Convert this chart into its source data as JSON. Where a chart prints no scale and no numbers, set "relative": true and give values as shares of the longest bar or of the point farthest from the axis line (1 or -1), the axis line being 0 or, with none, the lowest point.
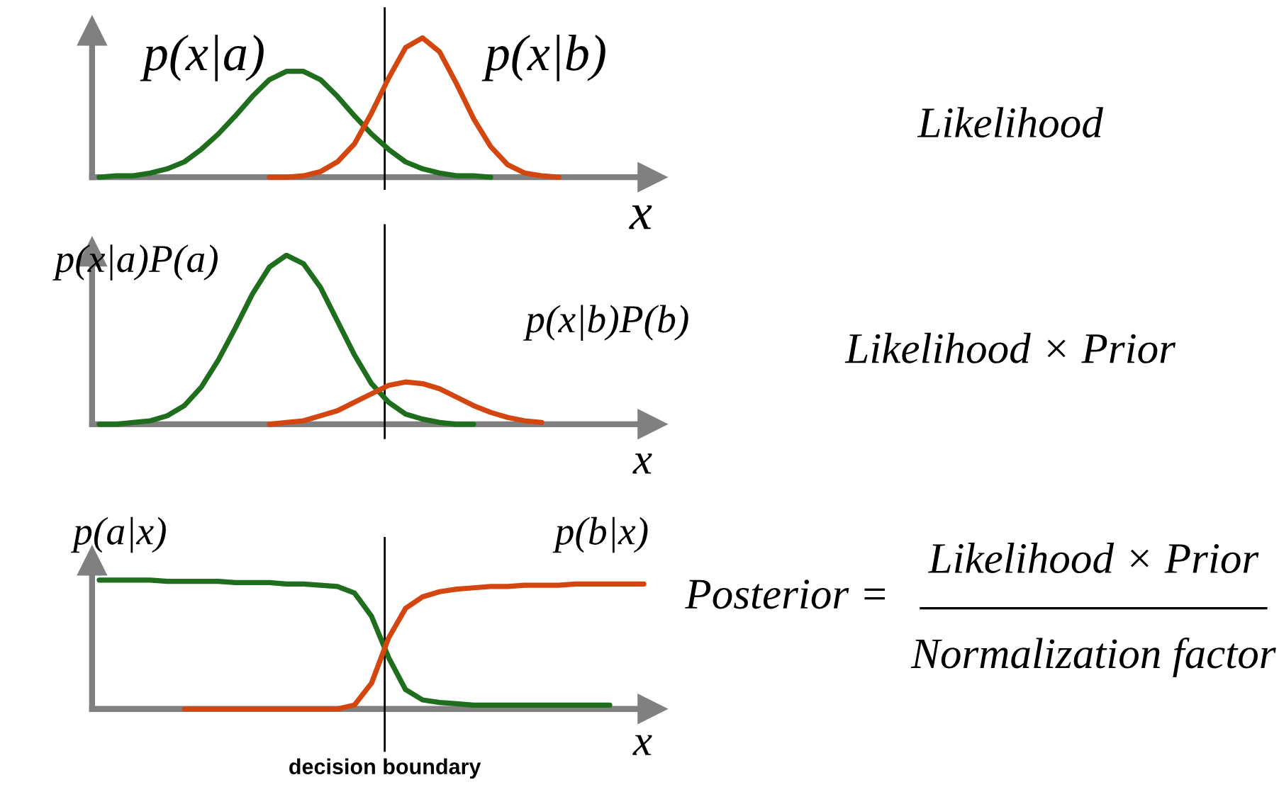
{
  "chart_data": [
    {
      "type": "line",
      "relative": true,
      "xlabel": "x",
      "legend": false,
      "grid": false,
      "categories": [
        null,
        null,
        null,
        null,
        null,
        null,
        null,
        null,
        null,
        null,
        null,
        null,
        null,
        null,
        null,
        null,
        null,
        null,
        null,
        null,
        null,
        null,
        null,
        null,
        null,
        null,
        null,
        null,
        null,
        null,
        null,
        null,
        null
      ],
      "series": [
        {
          "name": "p(x|a)",
          "color": "#1e6e1e",
          "values": [
            0.0,
            0.01,
            0.01,
            0.03,
            0.06,
            0.11,
            0.2,
            0.31,
            0.44,
            0.58,
            0.7,
            0.76,
            0.76,
            0.7,
            0.58,
            0.44,
            0.31,
            0.2,
            0.11,
            0.06,
            0.03,
            0.01,
            0.01,
            0.0,
            null,
            null,
            null,
            null,
            null,
            null,
            null,
            null,
            null
          ]
        },
        {
          "name": "p(x|b)",
          "color": "#d4460f",
          "values": [
            null,
            null,
            null,
            null,
            null,
            null,
            null,
            null,
            null,
            null,
            0.0,
            0.0,
            0.01,
            0.04,
            0.11,
            0.24,
            0.46,
            0.71,
            0.93,
            1.0,
            0.9,
            0.67,
            0.42,
            0.22,
            0.09,
            0.03,
            0.01,
            0.0,
            null,
            null,
            null,
            null,
            null
          ]
        }
      ],
      "annotations": [
        "Likelihood"
      ]
    },
    {
      "type": "line",
      "relative": true,
      "xlabel": "x",
      "legend": false,
      "grid": false,
      "categories": [
        null,
        null,
        null,
        null,
        null,
        null,
        null,
        null,
        null,
        null,
        null,
        null,
        null,
        null,
        null,
        null,
        null,
        null,
        null,
        null,
        null,
        null,
        null,
        null,
        null,
        null,
        null,
        null,
        null,
        null,
        null,
        null,
        null
      ],
      "series": [
        {
          "name": "p(x|a)P(a)",
          "color": "#1e6e1e",
          "values": [
            0.0,
            0.0,
            0.01,
            0.02,
            0.05,
            0.11,
            0.22,
            0.38,
            0.57,
            0.77,
            0.93,
            1.0,
            0.95,
            0.81,
            0.61,
            0.41,
            0.24,
            0.13,
            0.06,
            0.03,
            0.01,
            0.0,
            0.0,
            null,
            null,
            null,
            null,
            null,
            null,
            null,
            null,
            null,
            null
          ]
        },
        {
          "name": "p(x|b)P(b)",
          "color": "#d4460f",
          "values": [
            null,
            null,
            null,
            null,
            null,
            null,
            null,
            null,
            null,
            null,
            0.0,
            0.01,
            0.02,
            0.05,
            0.08,
            0.13,
            0.18,
            0.23,
            0.25,
            0.24,
            0.21,
            0.16,
            0.11,
            0.07,
            0.04,
            0.02,
            0.01,
            null,
            null,
            null,
            null,
            null,
            null
          ]
        }
      ],
      "annotations": [
        "Likelihood × Prior"
      ]
    },
    {
      "type": "line",
      "relative": true,
      "xlabel": "x",
      "legend": false,
      "grid": false,
      "categories": [
        null,
        null,
        null,
        null,
        null,
        null,
        null,
        null,
        null,
        null,
        null,
        null,
        null,
        null,
        null,
        null,
        null,
        null,
        null,
        null,
        null,
        null,
        null,
        null,
        null,
        null,
        null,
        null,
        null,
        null,
        null,
        null,
        null
      ],
      "series": [
        {
          "name": "p(a|x)",
          "color": "#1e6e1e",
          "values": [
            1.0,
            1.0,
            1.0,
            1.0,
            0.99,
            0.99,
            0.99,
            0.99,
            0.98,
            0.98,
            0.98,
            0.97,
            0.97,
            0.96,
            0.95,
            0.9,
            0.72,
            0.4,
            0.15,
            0.07,
            0.05,
            0.04,
            0.03,
            0.03,
            0.03,
            0.03,
            0.03,
            0.03,
            0.03,
            0.03,
            0.03,
            null,
            null
          ]
        },
        {
          "name": "p(b|x)",
          "color": "#d4460f",
          "values": [
            null,
            null,
            null,
            null,
            null,
            0.0,
            0.0,
            0.0,
            0.0,
            0.0,
            0.0,
            0.0,
            0.0,
            0.0,
            0.0,
            0.03,
            0.2,
            0.55,
            0.78,
            0.87,
            0.91,
            0.93,
            0.94,
            0.95,
            0.95,
            0.96,
            0.96,
            0.96,
            0.97,
            0.97,
            0.97,
            0.97,
            0.97
          ]
        }
      ],
      "annotations": [
        "Posterior =",
        "Likelihood × Prior",
        "Normalization factor",
        "decision boundary"
      ]
    }
  ]
}
